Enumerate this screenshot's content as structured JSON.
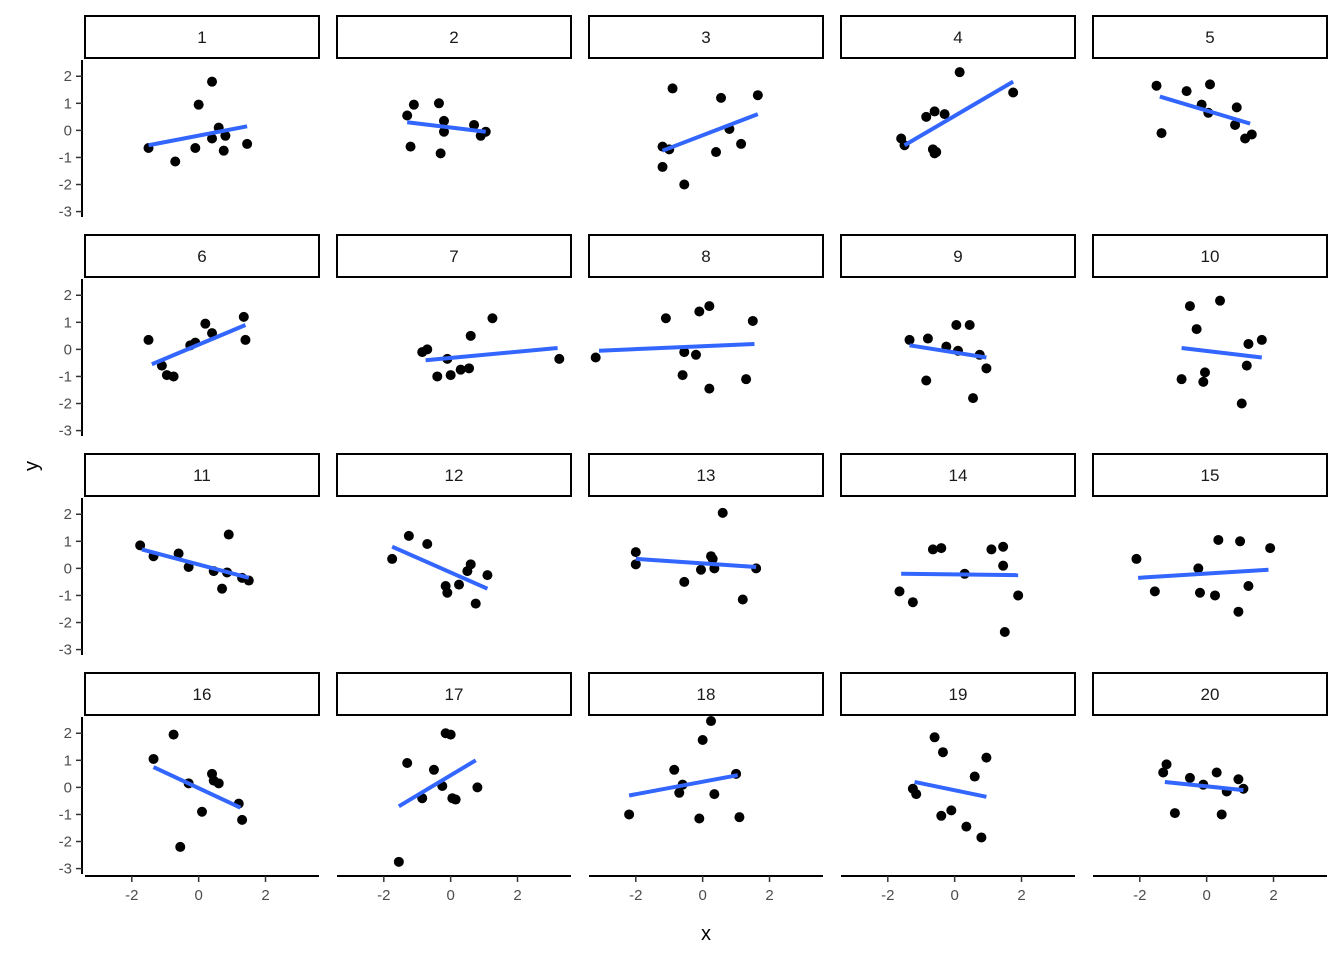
{
  "chart_data": {
    "type": "scatter",
    "facet_layout": {
      "rows": 4,
      "cols": 5
    },
    "xlabel": "x",
    "ylabel": "y",
    "xlim": [
      -3.4,
      3.6
    ],
    "ylim": [
      -3.2,
      2.6
    ],
    "x_ticks": [
      -2,
      0,
      2
    ],
    "y_ticks": [
      -3,
      -2,
      -1,
      0,
      1,
      2
    ],
    "point_color": "#000000",
    "line_color": "#3366FF",
    "grid": false,
    "panels": [
      {
        "label": "1",
        "points": [
          [
            -1.5,
            -0.65
          ],
          [
            -0.7,
            -1.15
          ],
          [
            -0.1,
            -0.65
          ],
          [
            0,
            0.95
          ],
          [
            0.4,
            -0.3
          ],
          [
            0.4,
            1.8
          ],
          [
            0.6,
            0.1
          ],
          [
            0.75,
            -0.75
          ],
          [
            0.8,
            -0.2
          ],
          [
            1.45,
            -0.5
          ]
        ],
        "fit": [
          [
            -1.5,
            -0.55
          ],
          [
            1.45,
            0.15
          ]
        ]
      },
      {
        "label": "2",
        "points": [
          [
            -1.3,
            0.55
          ],
          [
            -1.2,
            -0.6
          ],
          [
            -1.1,
            0.95
          ],
          [
            -0.35,
            1.0
          ],
          [
            -0.3,
            -0.85
          ],
          [
            -0.2,
            0.35
          ],
          [
            -0.2,
            -0.05
          ],
          [
            0.7,
            0.2
          ],
          [
            0.9,
            -0.2
          ],
          [
            1.05,
            -0.05
          ]
        ],
        "fit": [
          [
            -1.3,
            0.3
          ],
          [
            1.05,
            -0.05
          ]
        ]
      },
      {
        "label": "3",
        "points": [
          [
            -1.2,
            -0.6
          ],
          [
            -1.2,
            -1.35
          ],
          [
            -0.9,
            1.55
          ],
          [
            -0.55,
            -2.0
          ],
          [
            0.4,
            -0.8
          ],
          [
            0.55,
            1.2
          ],
          [
            0.8,
            0.05
          ],
          [
            1.15,
            -0.5
          ],
          [
            1.65,
            1.3
          ],
          [
            -1.0,
            -0.7
          ]
        ],
        "fit": [
          [
            -1.2,
            -0.75
          ],
          [
            1.65,
            0.6
          ]
        ]
      },
      {
        "label": "4",
        "points": [
          [
            -1.6,
            -0.3
          ],
          [
            -1.5,
            -0.55
          ],
          [
            -0.85,
            0.5
          ],
          [
            -0.6,
            0.7
          ],
          [
            -0.65,
            -0.7
          ],
          [
            -0.6,
            -0.85
          ],
          [
            -0.55,
            -0.8
          ],
          [
            -0.3,
            0.6
          ],
          [
            0.15,
            2.15
          ],
          [
            1.75,
            1.4
          ]
        ],
        "fit": [
          [
            -1.5,
            -0.55
          ],
          [
            1.75,
            1.8
          ]
        ]
      },
      {
        "label": "5",
        "points": [
          [
            -1.5,
            1.65
          ],
          [
            -1.35,
            -0.1
          ],
          [
            -0.6,
            1.45
          ],
          [
            -0.15,
            0.95
          ],
          [
            0.05,
            0.65
          ],
          [
            0.1,
            1.7
          ],
          [
            0.85,
            0.2
          ],
          [
            0.9,
            0.85
          ],
          [
            1.15,
            -0.3
          ],
          [
            1.35,
            -0.15
          ]
        ],
        "fit": [
          [
            -1.4,
            1.25
          ],
          [
            1.3,
            0.25
          ]
        ]
      },
      {
        "label": "6",
        "points": [
          [
            -1.5,
            0.35
          ],
          [
            -1.1,
            -0.6
          ],
          [
            -0.95,
            -0.95
          ],
          [
            -0.75,
            -1.0
          ],
          [
            -0.25,
            0.15
          ],
          [
            -0.1,
            0.25
          ],
          [
            0.2,
            0.95
          ],
          [
            0.4,
            0.6
          ],
          [
            1.35,
            1.2
          ],
          [
            1.4,
            0.35
          ]
        ],
        "fit": [
          [
            -1.4,
            -0.55
          ],
          [
            1.4,
            0.9
          ]
        ]
      },
      {
        "label": "7",
        "points": [
          [
            -0.85,
            -0.1
          ],
          [
            -0.7,
            0.0
          ],
          [
            -0.4,
            -1.0
          ],
          [
            -0.1,
            -0.35
          ],
          [
            0.0,
            -0.95
          ],
          [
            0.3,
            -0.75
          ],
          [
            0.55,
            -0.7
          ],
          [
            0.6,
            0.5
          ],
          [
            1.25,
            1.15
          ],
          [
            3.25,
            -0.35
          ]
        ],
        "fit": [
          [
            -0.75,
            -0.4
          ],
          [
            3.2,
            0.05
          ]
        ]
      },
      {
        "label": "8",
        "points": [
          [
            -3.2,
            -0.3
          ],
          [
            -1.1,
            1.15
          ],
          [
            -0.6,
            -0.95
          ],
          [
            -0.55,
            -0.1
          ],
          [
            -0.2,
            -0.2
          ],
          [
            -0.1,
            1.4
          ],
          [
            0.2,
            -1.45
          ],
          [
            0.2,
            1.6
          ],
          [
            1.3,
            -1.1
          ],
          [
            1.5,
            1.05
          ]
        ],
        "fit": [
          [
            -3.1,
            -0.05
          ],
          [
            1.55,
            0.2
          ]
        ]
      },
      {
        "label": "9",
        "points": [
          [
            -1.35,
            0.35
          ],
          [
            -0.85,
            -1.15
          ],
          [
            -0.8,
            0.4
          ],
          [
            -0.25,
            0.1
          ],
          [
            0.05,
            0.9
          ],
          [
            0.1,
            -0.05
          ],
          [
            0.45,
            0.9
          ],
          [
            0.55,
            -1.8
          ],
          [
            0.75,
            -0.2
          ],
          [
            0.95,
            -0.7
          ]
        ],
        "fit": [
          [
            -1.35,
            0.15
          ],
          [
            0.95,
            -0.3
          ]
        ]
      },
      {
        "label": "10",
        "points": [
          [
            -0.75,
            -1.1
          ],
          [
            -0.5,
            1.6
          ],
          [
            -0.3,
            0.75
          ],
          [
            -0.1,
            -1.2
          ],
          [
            -0.05,
            -0.85
          ],
          [
            0.4,
            1.8
          ],
          [
            1.05,
            -2.0
          ],
          [
            1.2,
            -0.6
          ],
          [
            1.25,
            0.2
          ],
          [
            1.65,
            0.35
          ]
        ],
        "fit": [
          [
            -0.75,
            0.05
          ],
          [
            1.65,
            -0.3
          ]
        ]
      },
      {
        "label": "11",
        "points": [
          [
            -1.75,
            0.85
          ],
          [
            -1.35,
            0.45
          ],
          [
            -0.6,
            0.55
          ],
          [
            -0.3,
            0.05
          ],
          [
            0.45,
            -0.1
          ],
          [
            0.7,
            -0.75
          ],
          [
            0.85,
            -0.15
          ],
          [
            0.9,
            1.25
          ],
          [
            1.3,
            -0.35
          ],
          [
            1.5,
            -0.45
          ]
        ],
        "fit": [
          [
            -1.7,
            0.7
          ],
          [
            1.5,
            -0.35
          ]
        ]
      },
      {
        "label": "12",
        "points": [
          [
            -1.75,
            0.35
          ],
          [
            -1.25,
            1.2
          ],
          [
            -0.7,
            0.9
          ],
          [
            -0.15,
            -0.65
          ],
          [
            -0.1,
            -0.9
          ],
          [
            0.25,
            -0.6
          ],
          [
            0.5,
            -0.1
          ],
          [
            0.6,
            0.15
          ],
          [
            0.75,
            -1.3
          ],
          [
            1.1,
            -0.25
          ]
        ],
        "fit": [
          [
            -1.75,
            0.8
          ],
          [
            1.1,
            -0.75
          ]
        ]
      },
      {
        "label": "13",
        "points": [
          [
            -2.0,
            0.6
          ],
          [
            -2.0,
            0.15
          ],
          [
            -0.55,
            -0.5
          ],
          [
            -0.05,
            -0.05
          ],
          [
            0.25,
            0.45
          ],
          [
            0.3,
            0.35
          ],
          [
            0.35,
            0.0
          ],
          [
            0.6,
            2.05
          ],
          [
            1.2,
            -1.15
          ],
          [
            1.6,
            0.0
          ]
        ],
        "fit": [
          [
            -2.0,
            0.35
          ],
          [
            1.6,
            0.05
          ]
        ]
      },
      {
        "label": "14",
        "points": [
          [
            -1.65,
            -0.85
          ],
          [
            -1.25,
            -1.25
          ],
          [
            -0.65,
            0.7
          ],
          [
            -0.4,
            0.75
          ],
          [
            0.3,
            -0.2
          ],
          [
            1.1,
            0.7
          ],
          [
            1.45,
            0.1
          ],
          [
            1.45,
            0.8
          ],
          [
            1.5,
            -2.35
          ],
          [
            1.9,
            -1.0
          ]
        ],
        "fit": [
          [
            -1.6,
            -0.2
          ],
          [
            1.9,
            -0.25
          ]
        ]
      },
      {
        "label": "15",
        "points": [
          [
            -2.1,
            0.35
          ],
          [
            -1.55,
            -0.85
          ],
          [
            -0.25,
            0.0
          ],
          [
            -0.2,
            -0.9
          ],
          [
            0.25,
            -1.0
          ],
          [
            0.35,
            1.05
          ],
          [
            0.95,
            -1.6
          ],
          [
            1.0,
            1.0
          ],
          [
            1.25,
            -0.65
          ],
          [
            1.9,
            0.75
          ]
        ],
        "fit": [
          [
            -2.05,
            -0.35
          ],
          [
            1.85,
            -0.05
          ]
        ]
      },
      {
        "label": "16",
        "points": [
          [
            -1.35,
            1.05
          ],
          [
            -0.75,
            1.95
          ],
          [
            -0.55,
            -2.2
          ],
          [
            -0.3,
            0.15
          ],
          [
            0.1,
            -0.9
          ],
          [
            0.4,
            0.5
          ],
          [
            0.45,
            0.25
          ],
          [
            0.6,
            0.15
          ],
          [
            1.2,
            -0.6
          ],
          [
            1.3,
            -1.2
          ]
        ],
        "fit": [
          [
            -1.35,
            0.75
          ],
          [
            1.25,
            -0.75
          ]
        ]
      },
      {
        "label": "17",
        "points": [
          [
            -1.55,
            -2.75
          ],
          [
            -1.3,
            0.9
          ],
          [
            -0.85,
            -0.4
          ],
          [
            -0.5,
            0.65
          ],
          [
            -0.25,
            0.05
          ],
          [
            -0.15,
            2.0
          ],
          [
            0.0,
            1.95
          ],
          [
            0.05,
            -0.4
          ],
          [
            0.15,
            -0.45
          ],
          [
            0.8,
            0.0
          ]
        ],
        "fit": [
          [
            -1.55,
            -0.7
          ],
          [
            0.75,
            1.0
          ]
        ]
      },
      {
        "label": "18",
        "points": [
          [
            -2.2,
            -1.0
          ],
          [
            -0.85,
            0.65
          ],
          [
            -0.7,
            -0.2
          ],
          [
            -0.6,
            0.1
          ],
          [
            -0.1,
            -1.15
          ],
          [
            0.0,
            1.75
          ],
          [
            0.25,
            2.45
          ],
          [
            0.35,
            -0.25
          ],
          [
            1.0,
            0.5
          ],
          [
            1.1,
            -1.1
          ]
        ],
        "fit": [
          [
            -2.2,
            -0.3
          ],
          [
            1.05,
            0.45
          ]
        ]
      },
      {
        "label": "19",
        "points": [
          [
            -1.25,
            -0.05
          ],
          [
            -1.15,
            -0.25
          ],
          [
            -0.6,
            1.85
          ],
          [
            -0.4,
            -1.05
          ],
          [
            -0.35,
            1.3
          ],
          [
            -0.1,
            -0.85
          ],
          [
            0.35,
            -1.45
          ],
          [
            0.6,
            0.4
          ],
          [
            0.8,
            -1.85
          ],
          [
            0.95,
            1.1
          ]
        ],
        "fit": [
          [
            -1.2,
            0.2
          ],
          [
            0.95,
            -0.35
          ]
        ]
      },
      {
        "label": "20",
        "points": [
          [
            -1.3,
            0.55
          ],
          [
            -1.2,
            0.85
          ],
          [
            -0.95,
            -0.95
          ],
          [
            -0.5,
            0.35
          ],
          [
            -0.1,
            0.1
          ],
          [
            0.3,
            0.55
          ],
          [
            0.45,
            -1.0
          ],
          [
            0.6,
            -0.15
          ],
          [
            0.95,
            0.3
          ],
          [
            1.1,
            -0.05
          ]
        ],
        "fit": [
          [
            -1.25,
            0.2
          ],
          [
            1.1,
            -0.1
          ]
        ]
      }
    ]
  }
}
